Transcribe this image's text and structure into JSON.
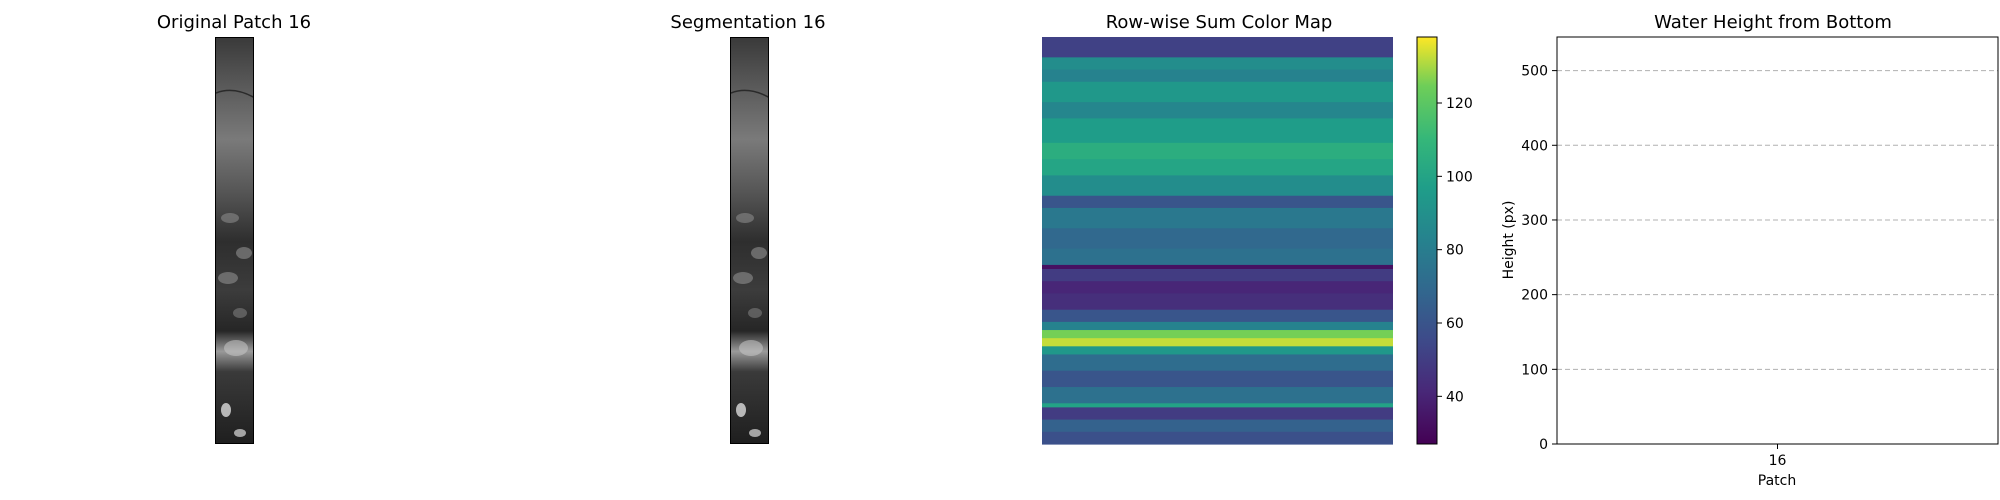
{
  "figure": {
    "panel1_title": "Original Patch 16",
    "panel2_title": "Segmentation 16",
    "panel3_title": "Row-wise Sum Color Map",
    "panel4_title": "Water Height from Bottom"
  },
  "colorbar": {
    "ticks": [
      "40",
      "60",
      "80",
      "100",
      "120"
    ],
    "tick_values": [
      40,
      60,
      80,
      100,
      120
    ],
    "min": 27,
    "max": 138
  },
  "chart_data": {
    "type": "bar",
    "title": "Water Height from Bottom",
    "xlabel": "Patch",
    "ylabel": "Height (px)",
    "categories": [
      "16"
    ],
    "values": [
      0
    ],
    "ylim": [
      0,
      545
    ],
    "yticks": [
      0,
      100,
      200,
      300,
      400,
      500
    ],
    "ytick_labels": [
      "0",
      "100",
      "200",
      "300",
      "400",
      "500"
    ],
    "grid": "y-dashed"
  }
}
